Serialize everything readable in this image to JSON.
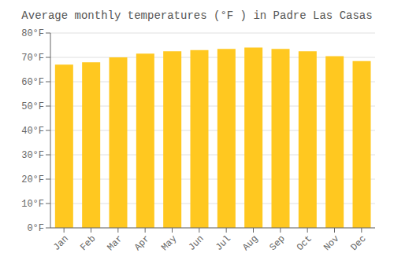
{
  "chart_data": {
    "type": "bar",
    "title": "Average monthly temperatures (°F ) in Padre Las Casas",
    "categories": [
      "Jan",
      "Feb",
      "Mar",
      "Apr",
      "May",
      "Jun",
      "Jul",
      "Aug",
      "Sep",
      "Oct",
      "Nov",
      "Dec"
    ],
    "values": [
      67,
      68,
      70,
      71.5,
      72.5,
      73,
      73.5,
      74,
      73.5,
      72.5,
      70.5,
      68.5
    ],
    "color": "#FFC820",
    "ylim": [
      0,
      80
    ],
    "yticks": [
      {
        "value": 0,
        "label": "0°F"
      },
      {
        "value": 10,
        "label": "10°F"
      },
      {
        "value": 20,
        "label": "20°F"
      },
      {
        "value": 30,
        "label": "30°F"
      },
      {
        "value": 40,
        "label": "40°F"
      },
      {
        "value": 50,
        "label": "50°F"
      },
      {
        "value": 60,
        "label": "60°F"
      },
      {
        "value": 70,
        "label": "70°F"
      },
      {
        "value": 80,
        "label": "80°F"
      }
    ],
    "grid": true
  }
}
